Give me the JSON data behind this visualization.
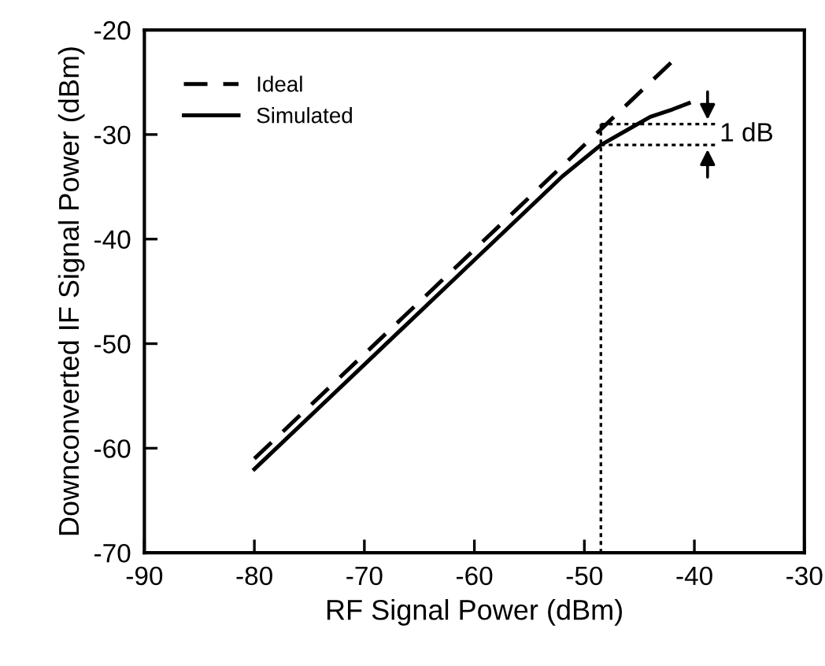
{
  "chart_data": {
    "type": "line",
    "xlabel": "RF Signal Power (dBm)",
    "ylabel": "Downconverted IF Signal Power (dBm)",
    "xlim": [
      -90,
      -30
    ],
    "xticks": [
      -90,
      -80,
      -70,
      -60,
      -50,
      -40,
      -30
    ],
    "ylim": [
      -70,
      -20
    ],
    "yticks": [
      -70,
      -60,
      -50,
      -40,
      -30,
      -20
    ],
    "grid": false,
    "legend": "top left",
    "marker": "none",
    "series": [
      {
        "name": "Ideal",
        "color": "#000000",
        "line_style": "dashed",
        "x": [
          -80,
          -42
        ],
        "values": [
          -61,
          -23
        ]
      },
      {
        "name": "Simulated",
        "color": "#000000",
        "line_style": "solid",
        "x": [
          -80,
          -70,
          -60,
          -52,
          -48.5,
          -46,
          -44,
          -42,
          -40.5
        ],
        "values": [
          -62,
          -52,
          -42,
          -34,
          -31,
          -29.5,
          -28.3,
          -27.6,
          -27
        ]
      },
      {
        "color": "#000000",
        "line_style": "dotted",
        "x": [
          -48.5,
          -48.5
        ],
        "values": [
          -70,
          -29
        ]
      },
      {
        "color": "#000000",
        "line_style": "dotted",
        "x": [
          -48.5,
          -38
        ],
        "values": [
          -29,
          -29
        ]
      },
      {
        "color": "#000000",
        "line_style": "dotted",
        "x": [
          -48.5,
          -38
        ],
        "values": [
          -31,
          -31
        ]
      }
    ],
    "annotations": [
      "1 dB"
    ]
  }
}
